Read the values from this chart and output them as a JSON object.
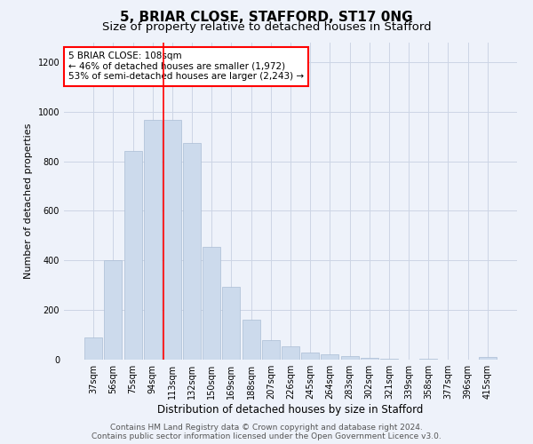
{
  "title": "5, BRIAR CLOSE, STAFFORD, ST17 0NG",
  "subtitle": "Size of property relative to detached houses in Stafford",
  "xlabel": "Distribution of detached houses by size in Stafford",
  "ylabel": "Number of detached properties",
  "categories": [
    "37sqm",
    "56sqm",
    "75sqm",
    "94sqm",
    "113sqm",
    "132sqm",
    "150sqm",
    "169sqm",
    "188sqm",
    "207sqm",
    "226sqm",
    "245sqm",
    "264sqm",
    "283sqm",
    "302sqm",
    "321sqm",
    "339sqm",
    "358sqm",
    "377sqm",
    "396sqm",
    "415sqm"
  ],
  "bar_values": [
    90,
    400,
    840,
    965,
    965,
    875,
    455,
    295,
    160,
    80,
    52,
    30,
    20,
    15,
    8,
    5,
    0,
    5,
    0,
    0,
    10
  ],
  "bar_color": "#ccdaec",
  "bar_edgecolor": "#aabdd4",
  "vline_x": 3.575,
  "vline_color": "red",
  "annotation_text": "5 BRIAR CLOSE: 108sqm\n← 46% of detached houses are smaller (1,972)\n53% of semi-detached houses are larger (2,243) →",
  "annotation_box_color": "white",
  "annotation_box_edgecolor": "red",
  "ylim": [
    0,
    1280
  ],
  "yticks": [
    0,
    200,
    400,
    600,
    800,
    1000,
    1200
  ],
  "grid_color": "#ccd5e5",
  "background_color": "#eef2fa",
  "footer_line1": "Contains HM Land Registry data © Crown copyright and database right 2024.",
  "footer_line2": "Contains public sector information licensed under the Open Government Licence v3.0.",
  "title_fontsize": 11,
  "subtitle_fontsize": 9.5,
  "xlabel_fontsize": 8.5,
  "ylabel_fontsize": 8,
  "tick_fontsize": 7,
  "footer_fontsize": 6.5,
  "annot_fontsize": 7.5
}
